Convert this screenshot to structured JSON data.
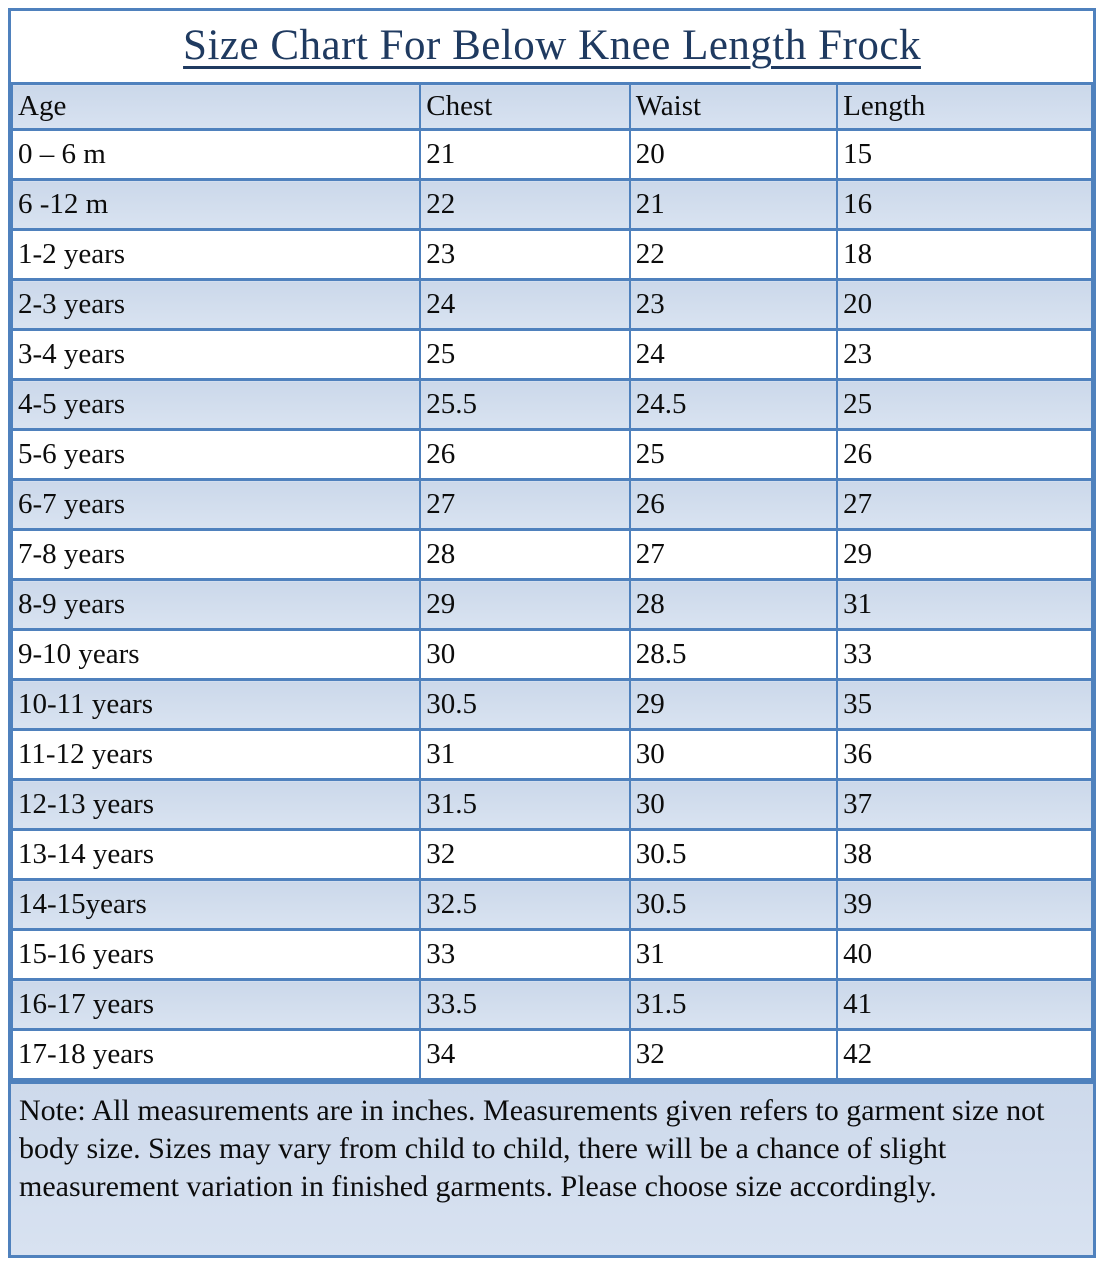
{
  "title": "Size Chart For Below Knee Length Frock",
  "table": {
    "headers": [
      "Age",
      "Chest",
      "Waist",
      "Length"
    ],
    "rows": [
      [
        "0 – 6 m",
        "21",
        "20",
        "15"
      ],
      [
        "6 -12 m",
        "22",
        "21",
        "16"
      ],
      [
        "1-2 years",
        "23",
        "22",
        "18"
      ],
      [
        "2-3 years",
        "24",
        "23",
        "20"
      ],
      [
        "3-4 years",
        "25",
        "24",
        "23"
      ],
      [
        "4-5 years",
        "25.5",
        "24.5",
        "25"
      ],
      [
        "5-6 years",
        "26",
        "25",
        "26"
      ],
      [
        "6-7 years",
        "27",
        "26",
        "27"
      ],
      [
        "7-8 years",
        "28",
        "27",
        "29"
      ],
      [
        "8-9 years",
        "29",
        "28",
        "31"
      ],
      [
        "9-10 years",
        "30",
        "28.5",
        "33"
      ],
      [
        "10-11 years",
        "30.5",
        "29",
        "35"
      ],
      [
        "11-12 years",
        "31",
        "30",
        "36"
      ],
      [
        "12-13 years",
        "31.5",
        "30",
        "37"
      ],
      [
        "13-14 years",
        "32",
        "30.5",
        "38"
      ],
      [
        "14-15years",
        "32.5",
        "30.5",
        "39"
      ],
      [
        "15-16 years",
        "33",
        "31",
        "40"
      ],
      [
        "16-17 years",
        "33.5",
        "31.5",
        "41"
      ],
      [
        "17-18 years",
        "34",
        "32",
        "42"
      ]
    ]
  },
  "note": "Note: All measurements are in inches. Measurements given refers to garment size not body size. Sizes may vary from child to child, there will be a chance of slight measurement variation in finished garments. Please choose size accordingly.",
  "colors": {
    "border": "#4f81bd",
    "row_alt_fill": "#cfdceb",
    "header_fill": "#cfdceb",
    "title_text": "#1f3a60",
    "body_text": "#0c0c0c"
  },
  "units": "inches"
}
